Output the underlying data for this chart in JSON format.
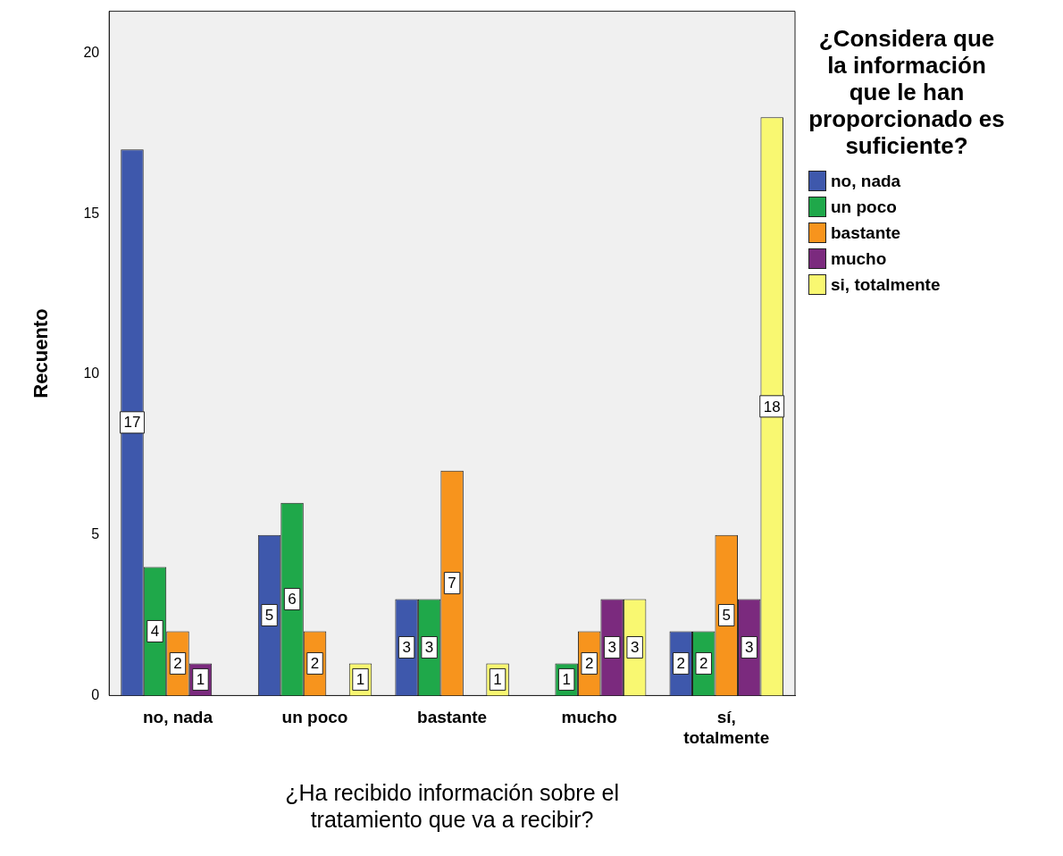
{
  "chart_data": {
    "type": "bar",
    "xlabel": "¿Ha recibido información sobre el tratamiento que va a recibir?",
    "ylabel": "Recuento",
    "legend_title": "¿Considera que la información que le han proporcionado es suficiente?",
    "categories": [
      "no, nada",
      "un poco",
      "bastante",
      "mucho",
      "sí, totalmente"
    ],
    "series": [
      {
        "name": "no, nada",
        "color": "#3e58ac",
        "values": [
          17,
          5,
          3,
          null,
          2
        ]
      },
      {
        "name": "un poco",
        "color": "#1fa84a",
        "values": [
          4,
          6,
          3,
          1,
          2
        ]
      },
      {
        "name": "bastante",
        "color": "#f7941d",
        "values": [
          2,
          2,
          7,
          2,
          5
        ]
      },
      {
        "name": "mucho",
        "color": "#7b2a7e",
        "values": [
          1,
          null,
          null,
          3,
          3
        ]
      },
      {
        "name": "si, totalmente",
        "color": "#f9f871",
        "values": [
          null,
          1,
          1,
          3,
          18
        ]
      }
    ],
    "ylim": [
      0,
      21.3
    ],
    "yticks": [
      0,
      5,
      10,
      15,
      20
    ],
    "grid": false,
    "legend": "right",
    "data_labels": true
  }
}
